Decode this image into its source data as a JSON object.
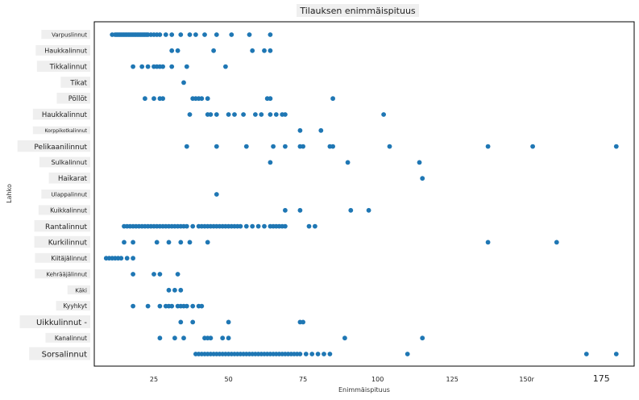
{
  "chart_data": {
    "type": "scatter",
    "title": "Tilauksen enimmäispituus",
    "xlabel": "Enimmäispituus",
    "ylabel": "Lahko",
    "xlim": [
      5,
      186
    ],
    "xticks": [
      {
        "value": 25,
        "label": "25"
      },
      {
        "value": 50,
        "label": "50"
      },
      {
        "value": 75,
        "label": "75"
      },
      {
        "value": 100,
        "label": "100"
      },
      {
        "value": 125,
        "label": "125"
      },
      {
        "value": 150,
        "label": "150r"
      },
      {
        "value": 175,
        "label": "175"
      }
    ],
    "grid": false,
    "point_color": "#1f77b4",
    "categories": [
      "Varpuslinnut",
      "Haukkalinnut",
      "Tikkalinnut",
      "Tikat",
      "Pöllöt",
      "Haukkalinnut",
      "Korppikotkalinnut",
      "Pelikaanilinnut",
      "Sulkalinnut",
      "Haikarat",
      "Ulappalinnut",
      "Kuikkalinnut",
      "Rantalinnut",
      "Kurkilinnut",
      "Kiitäjälinnut",
      "Kehrääjälinnut",
      "Käki",
      "Kyyhkyt",
      "Uikkulinnut -",
      "Kanalinnut",
      "Sorsalinnut"
    ],
    "series": [
      {
        "category": "Varpuslinnut",
        "x": [
          11,
          12,
          12.5,
          13,
          13.5,
          14,
          14.5,
          15,
          15.5,
          16,
          16.5,
          17,
          17.5,
          18,
          18.5,
          19,
          19.5,
          20,
          20.5,
          21,
          21.5,
          22,
          22.5,
          23,
          24,
          25,
          26,
          27,
          29,
          31,
          34,
          37,
          39,
          42,
          46,
          51,
          57,
          64
        ]
      },
      {
        "category": "Haukkalinnut",
        "x": [
          31,
          33,
          45,
          58,
          62,
          64
        ]
      },
      {
        "category": "Tikkalinnut",
        "x": [
          18,
          21,
          23,
          25,
          26,
          27,
          28,
          31,
          36,
          49
        ]
      },
      {
        "category": "Tikat",
        "x": [
          35
        ]
      },
      {
        "category": "Pöllöt",
        "x": [
          22,
          25,
          27,
          28,
          38,
          39,
          40,
          41,
          43,
          63,
          64,
          85
        ]
      },
      {
        "category": "Haukkalinnut",
        "x": [
          37,
          43,
          44,
          46,
          50,
          52,
          55,
          59,
          61,
          64,
          66,
          68,
          69,
          102
        ]
      },
      {
        "category": "Korppikotkalinnut",
        "x": [
          74,
          81
        ]
      },
      {
        "category": "Pelikaanilinnut",
        "x": [
          36,
          46,
          56,
          65,
          69,
          74,
          75,
          84,
          85,
          104,
          137,
          152,
          180
        ]
      },
      {
        "category": "Sulkalinnut",
        "x": [
          64,
          90,
          114
        ]
      },
      {
        "category": "Haikarat",
        "x": [
          115
        ]
      },
      {
        "category": "Ulappalinnut",
        "x": [
          46
        ]
      },
      {
        "category": "Kuikkalinnut",
        "x": [
          69,
          74,
          91,
          97
        ]
      },
      {
        "category": "Rantalinnut",
        "x": [
          15,
          16,
          17,
          18,
          19,
          20,
          21,
          22,
          23,
          24,
          25,
          26,
          27,
          28,
          29,
          30,
          31,
          32,
          33,
          34,
          35,
          36,
          38,
          40,
          41,
          42,
          43,
          44,
          45,
          46,
          47,
          48,
          49,
          50,
          51,
          52,
          53,
          54,
          56,
          58,
          60,
          62,
          64,
          65,
          66,
          67,
          68,
          69,
          77,
          79
        ]
      },
      {
        "category": "Kurkilinnut",
        "x": [
          15,
          18,
          26,
          30,
          34,
          37,
          43,
          137,
          160
        ]
      },
      {
        "category": "Kiitäjälinnut",
        "x": [
          9,
          10,
          11,
          12,
          13,
          14,
          16,
          18
        ]
      },
      {
        "category": "Kehrääjälinnut",
        "x": [
          18,
          25,
          27,
          33
        ]
      },
      {
        "category": "Käki",
        "x": [
          30,
          32,
          34
        ]
      },
      {
        "category": "Kyyhkyt",
        "x": [
          18,
          23,
          27,
          29,
          30,
          31,
          33,
          34,
          35,
          36,
          38,
          40,
          41
        ]
      },
      {
        "category": "Uikkulinnut -",
        "x": [
          34,
          38,
          50,
          74,
          75
        ]
      },
      {
        "category": "Kanalinnut",
        "x": [
          27,
          32,
          35,
          42,
          43,
          44,
          48,
          50,
          89,
          115
        ]
      },
      {
        "category": "Sorsalinnut",
        "x": [
          39,
          40,
          41,
          42,
          43,
          44,
          45,
          46,
          47,
          48,
          49,
          50,
          51,
          52,
          53,
          54,
          55,
          56,
          57,
          58,
          59,
          60,
          61,
          62,
          63,
          64,
          65,
          66,
          67,
          68,
          69,
          70,
          71,
          72,
          73,
          74,
          76,
          78,
          80,
          82,
          84,
          110,
          170,
          180
        ]
      }
    ]
  }
}
